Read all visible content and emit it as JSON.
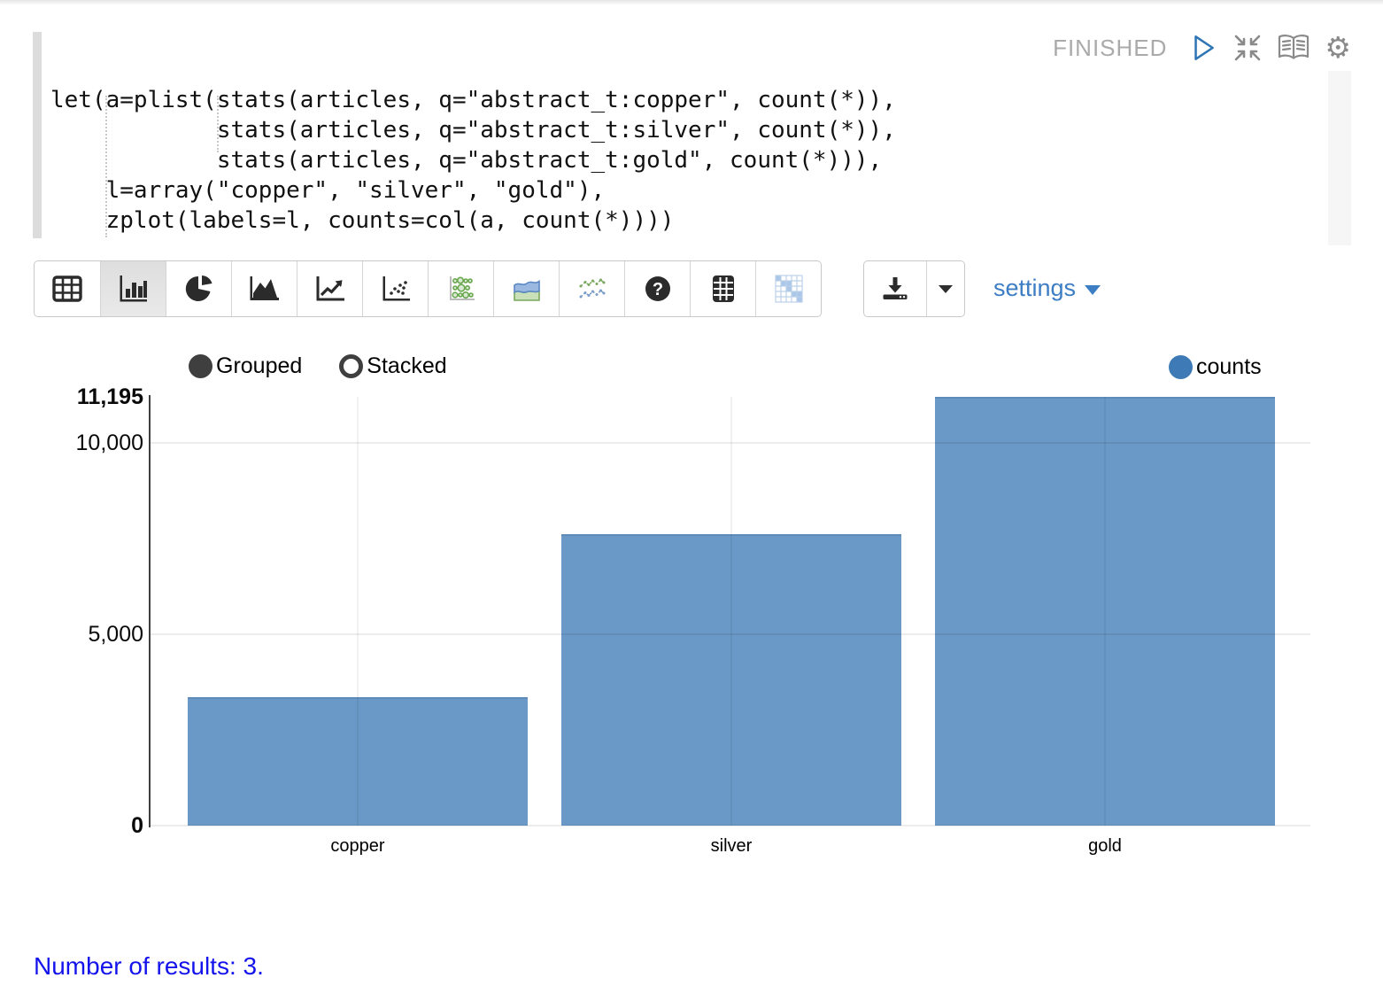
{
  "editor": {
    "code_lines": [
      "let(a=plist(stats(articles, q=\"abstract_t:copper\", count(*)),",
      "            stats(articles, q=\"abstract_t:silver\", count(*)),",
      "            stats(articles, q=\"abstract_t:gold\", count(*))),",
      "    l=array(\"copper\", \"silver\", \"gold\"),",
      "    zplot(labels=l, counts=col(a, count(*))))"
    ]
  },
  "status": {
    "label": "FINISHED"
  },
  "toolbar": {
    "buttons": [
      "table",
      "bar-chart",
      "pie-chart",
      "area-chart",
      "line-chart",
      "scatter-plot",
      "bubble-chart",
      "stacked-area-chart",
      "multi-line-chart",
      "help",
      "data-table",
      "heatmap"
    ],
    "selected": "bar-chart",
    "settings_label": "settings"
  },
  "chart_controls": {
    "grouped_label": "Grouped",
    "stacked_label": "Stacked",
    "selected": "Grouped"
  },
  "legend": {
    "series_label": "counts",
    "color": "#3e7bb6"
  },
  "chart_data": {
    "type": "bar",
    "categories": [
      "copper",
      "silver",
      "gold"
    ],
    "values": [
      3350,
      7610,
      11195
    ],
    "series": [
      {
        "name": "counts",
        "values": [
          3350,
          7610,
          11195
        ]
      }
    ],
    "title": "",
    "xlabel": "",
    "ylabel": "",
    "ylim": [
      0,
      11195
    ],
    "yticks": [
      {
        "label": "11,195",
        "value": 11195,
        "bold": true,
        "grid": false
      },
      {
        "label": "10,000",
        "value": 10000,
        "bold": false,
        "grid": true
      },
      {
        "label": "5,000",
        "value": 5000,
        "bold": false,
        "grid": true
      },
      {
        "label": "0",
        "value": 0,
        "bold": true,
        "grid": true
      }
    ],
    "bar_color": "#6a99c7",
    "grid": true,
    "legend_position": "top-right"
  },
  "footer": {
    "results_text": "Number of results: 3."
  }
}
